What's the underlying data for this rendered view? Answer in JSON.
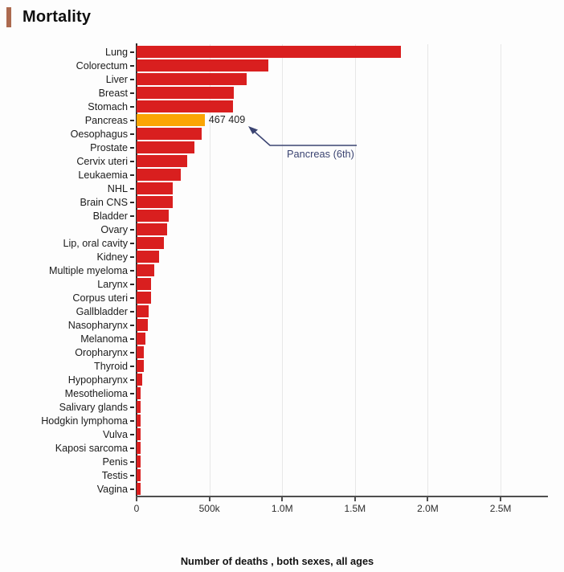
{
  "page": {
    "title": "Mortality",
    "accent_color": "#ac6a4f",
    "background": "#fdfdfd"
  },
  "chart_data": {
    "type": "bar",
    "orientation": "horizontal",
    "title": "Mortality",
    "xlabel": "Number of deaths , both sexes, all ages",
    "ylabel": "",
    "xlim": [
      0,
      2825000
    ],
    "grid": true,
    "legend": "none",
    "bar_color": "#d91f1f",
    "axis_color": "#2b2b2b",
    "gridline_color": "#e7e7e7",
    "categories": [
      "Lung",
      "Colorectum",
      "Liver",
      "Breast",
      "Stomach",
      "Pancreas",
      "Oesophagus",
      "Prostate",
      "Cervix uteri",
      "Leukaemia",
      "NHL",
      "Brain CNS",
      "Bladder",
      "Ovary",
      "Lip, oral cavity",
      "Kidney",
      "Multiple myeloma",
      "Larynx",
      "Corpus uteri",
      "Gallbladder",
      "Nasopharynx",
      "Melanoma",
      "Oropharynx",
      "Thyroid",
      "Hypopharynx",
      "Mesothelioma",
      "Salivary glands",
      "Hodgkin lymphoma",
      "Vulva",
      "Kaposi sarcoma",
      "Penis",
      "Testis",
      "Vagina"
    ],
    "values": [
      1817000,
      904000,
      758000,
      666000,
      660000,
      467409,
      445000,
      397000,
      349000,
      305000,
      251000,
      248000,
      220000,
      207000,
      188000,
      156000,
      121000,
      100000,
      98000,
      83000,
      80000,
      59000,
      52000,
      48000,
      40000,
      26000,
      23000,
      23000,
      17000,
      15000,
      13000,
      9000,
      8000
    ],
    "x_ticks": [
      {
        "label": "0",
        "value": 0
      },
      {
        "label": "500k",
        "value": 500000
      },
      {
        "label": "1.0M",
        "value": 1000000
      },
      {
        "label": "1.5M",
        "value": 1500000
      },
      {
        "label": "2.0M",
        "value": 2000000
      },
      {
        "label": "2.5M",
        "value": 2500000
      }
    ],
    "highlight": {
      "category": "Pancreas",
      "index": 5,
      "color": "#fba504",
      "value_label": "467 409",
      "annotation": "Pancreas (6th)",
      "annotation_color": "#3b4472"
    }
  }
}
